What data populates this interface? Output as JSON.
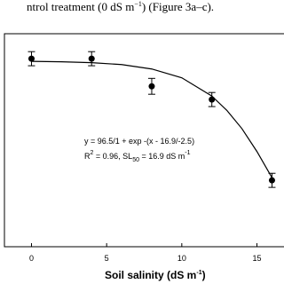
{
  "caption": [
    "ntrol treatment (0 dS m",
    "−1",
    ") (Figure 3a–c)."
  ],
  "chart_data": {
    "type": "scatter",
    "x_label": [
      "Soil salinity (dS m",
      "-1",
      ")"
    ],
    "annotations": [
      [
        "y = 96.5/1 + exp -(x - 16.9/-2.5)"
      ],
      [
        "R",
        "2",
        " = 0.96, SL",
        "50",
        " =  16.9 dS m",
        "-1"
      ]
    ],
    "xlim": [
      -1.8,
      16.8
    ],
    "xticks": [
      0,
      5,
      10,
      15
    ],
    "ylim": [
      33.3,
      105.8
    ],
    "series": [
      {
        "color": "#000000",
        "x": [
          0,
          4,
          8,
          12,
          16
        ],
        "values": [
          97.3,
          97.3,
          87.9,
          83.4,
          55.9
        ],
        "errors": [
          2.4,
          2.4,
          2.7,
          2.4,
          2.4
        ]
      },
      {
        "color": "#000000",
        "line": true,
        "x": [
          0,
          2,
          4,
          6,
          8,
          10,
          12,
          13,
          14,
          15,
          16
        ],
        "values": [
          96.4,
          96.25,
          95.95,
          95.3,
          93.8,
          90.8,
          84.6,
          79.7,
          73.5,
          65.7,
          56.8
        ]
      }
    ]
  }
}
